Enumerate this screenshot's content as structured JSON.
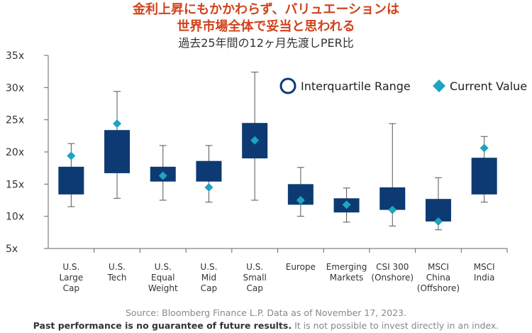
{
  "title": {
    "line1": "金利上昇にもかかわらず、バリュエーションは",
    "line2": "世界市場全体で妥当と思われる",
    "subtitle": "過去25年間の12ヶ月先渡しPER比"
  },
  "colors": {
    "box": "#0d3a72",
    "marker": "#1fa3c0",
    "title": "#d0421b"
  },
  "chart_data": {
    "type": "box",
    "ylim": [
      5,
      35
    ],
    "yticks": [
      5,
      10,
      15,
      20,
      25,
      30,
      35
    ],
    "ytick_labels": [
      "5x",
      "10x",
      "15x",
      "20x",
      "25x",
      "30x",
      "35x"
    ],
    "legend": {
      "iqr_label": "Interquartile Range",
      "current_label": "Current Value",
      "position": "top-right"
    },
    "categories": [
      {
        "label": [
          "U.S.",
          "Large",
          "Cap"
        ],
        "min": 11.5,
        "q1": 13.4,
        "q3": 17.7,
        "max": 21.3,
        "current": 19.4
      },
      {
        "label": [
          "U.S.",
          "Tech"
        ],
        "min": 12.8,
        "q1": 16.7,
        "q3": 23.4,
        "max": 29.4,
        "current": 24.4
      },
      {
        "label": [
          "U.S.",
          "Equal",
          "Weight"
        ],
        "min": 12.5,
        "q1": 15.4,
        "q3": 17.7,
        "max": 21.0,
        "current": 16.3
      },
      {
        "label": [
          "U.S.",
          "Mid",
          "Cap"
        ],
        "min": 12.2,
        "q1": 15.4,
        "q3": 18.6,
        "max": 21.0,
        "current": 14.5
      },
      {
        "label": [
          "U.S.",
          "Small",
          "Cap"
        ],
        "min": 12.5,
        "q1": 19.0,
        "q3": 24.5,
        "max": 32.4,
        "current": 21.8
      },
      {
        "label": [
          "Europe"
        ],
        "min": 10.0,
        "q1": 11.8,
        "q3": 15.0,
        "max": 17.6,
        "current": 12.5
      },
      {
        "label": [
          "Emerging",
          "Markets"
        ],
        "min": 9.1,
        "q1": 10.6,
        "q3": 12.8,
        "max": 14.4,
        "current": 11.8
      },
      {
        "label": [
          "CSI 300",
          "(Onshore)"
        ],
        "min": 8.5,
        "q1": 11.0,
        "q3": 14.5,
        "max": 24.4,
        "current": 11.0
      },
      {
        "label": [
          "MSCI",
          "China",
          "(Offshore)"
        ],
        "min": 7.9,
        "q1": 9.2,
        "q3": 12.7,
        "max": 16.0,
        "current": 9.2
      },
      {
        "label": [
          "MSCI",
          "India"
        ],
        "min": 12.2,
        "q1": 13.4,
        "q3": 19.1,
        "max": 22.4,
        "current": 20.6
      }
    ]
  },
  "footer": {
    "source": "Source: Bloomberg Finance L.P. Data as of November 17, 2023.",
    "bold": "Past performance is no guarantee of future results.",
    "rest": " It is not possible to invest directly in an index."
  }
}
